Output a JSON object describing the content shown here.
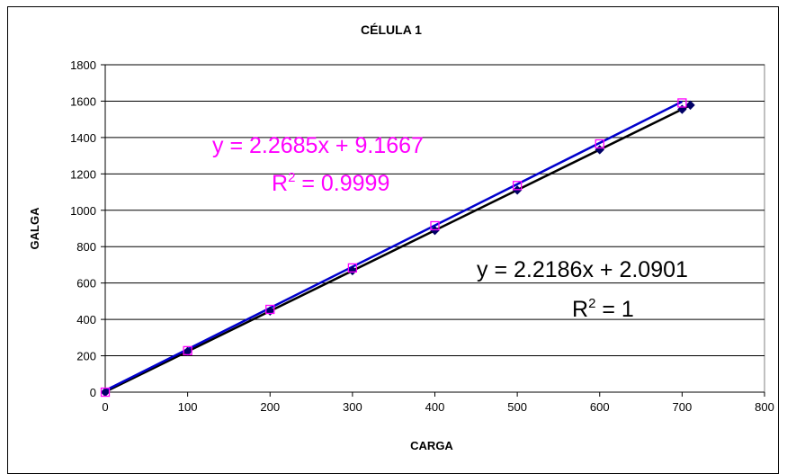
{
  "chart_data": {
    "type": "scatter",
    "title": "CÉLULA 1",
    "xlabel": "CARGA",
    "ylabel": "GALGA",
    "xlim": [
      0,
      800
    ],
    "ylim": [
      0,
      1800
    ],
    "x_ticks": [
      "0",
      "100",
      "200",
      "300",
      "400",
      "500",
      "600",
      "700",
      "800"
    ],
    "y_ticks": [
      "0",
      "200",
      "400",
      "600",
      "800",
      "1000",
      "1200",
      "1400",
      "1600",
      "1800"
    ],
    "grid": "horizontal",
    "series": [
      {
        "color": "#ff00ff",
        "marker": "open-square",
        "trendline_color": "#0000cc",
        "x": [
          0,
          100,
          200,
          300,
          400,
          500,
          600,
          700
        ],
        "y": [
          0,
          228,
          455,
          683,
          915,
          1136,
          1365,
          1590
        ],
        "trendline": {
          "slope": 2.2685,
          "intercept": 9.1667
        },
        "equation": {
          "line": "y = 2.2685x + 9.1667",
          "r2_prefix": "R",
          "r2_exp": "2",
          "r2_value": " = 0.9999"
        }
      },
      {
        "color": "#000066",
        "marker": "filled-diamond",
        "trendline_color": "#000000",
        "x": [
          0,
          100,
          200,
          300,
          400,
          500,
          600,
          700,
          710
        ],
        "y": [
          0,
          224,
          446,
          668,
          889,
          1111,
          1333,
          1555,
          1578
        ],
        "trendline": {
          "slope": 2.2186,
          "intercept": 2.0901
        },
        "equation": {
          "line": "y = 2.2186x + 2.0901",
          "r2_prefix": "R",
          "r2_exp": "2",
          "r2_value": " = 1"
        }
      }
    ]
  }
}
